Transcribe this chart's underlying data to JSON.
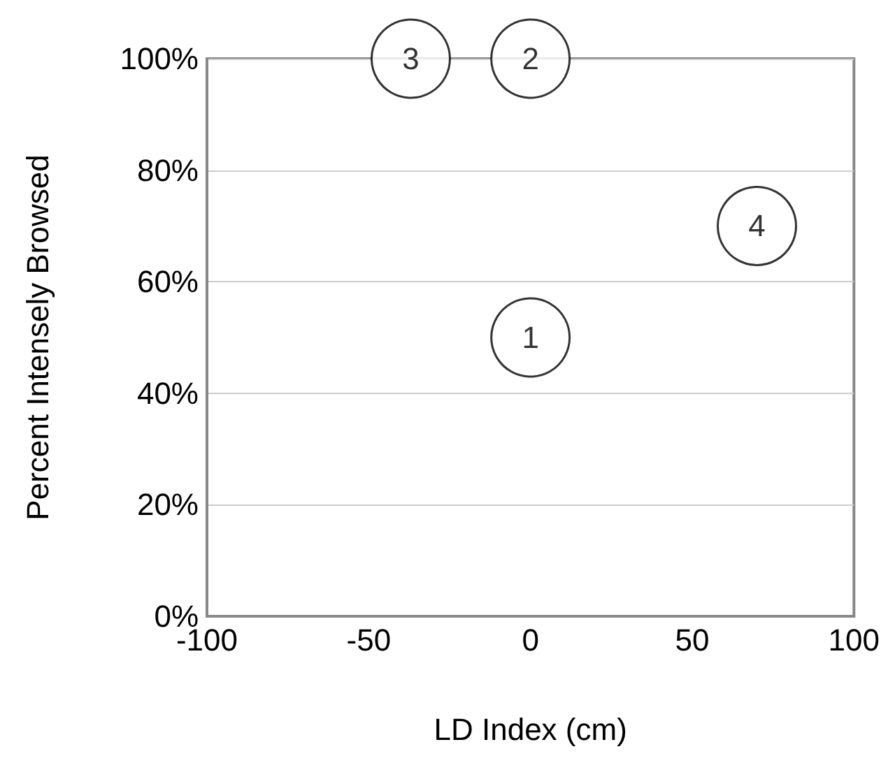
{
  "chart_data": {
    "type": "scatter",
    "xlabel": "LD Index (cm)",
    "ylabel": "Percent Intensely Browsed",
    "x": [
      0,
      0,
      -37,
      70
    ],
    "series": [
      {
        "color": "#000000",
        "values": [
          50,
          100,
          100,
          70
        ]
      }
    ],
    "annotations": [
      {
        "text": "1",
        "x": 0,
        "y": 50
      },
      {
        "text": "2",
        "x": 0,
        "y": 100
      },
      {
        "text": "3",
        "x": -37,
        "y": 100
      },
      {
        "text": "4",
        "x": 70,
        "y": 70
      }
    ],
    "xlim": [
      -100,
      100
    ],
    "xticks": [
      -100,
      -50,
      0,
      50,
      100
    ],
    "ylim": [
      0,
      100
    ],
    "yticks": [
      {
        "value": 0,
        "label": "0%"
      },
      {
        "value": 20,
        "label": "20%"
      },
      {
        "value": 40,
        "label": "40%"
      },
      {
        "value": 60,
        "label": "60%"
      },
      {
        "value": 80,
        "label": "80%"
      },
      {
        "value": 100,
        "label": "100%"
      }
    ],
    "grid": "y",
    "marker": "circle"
  }
}
